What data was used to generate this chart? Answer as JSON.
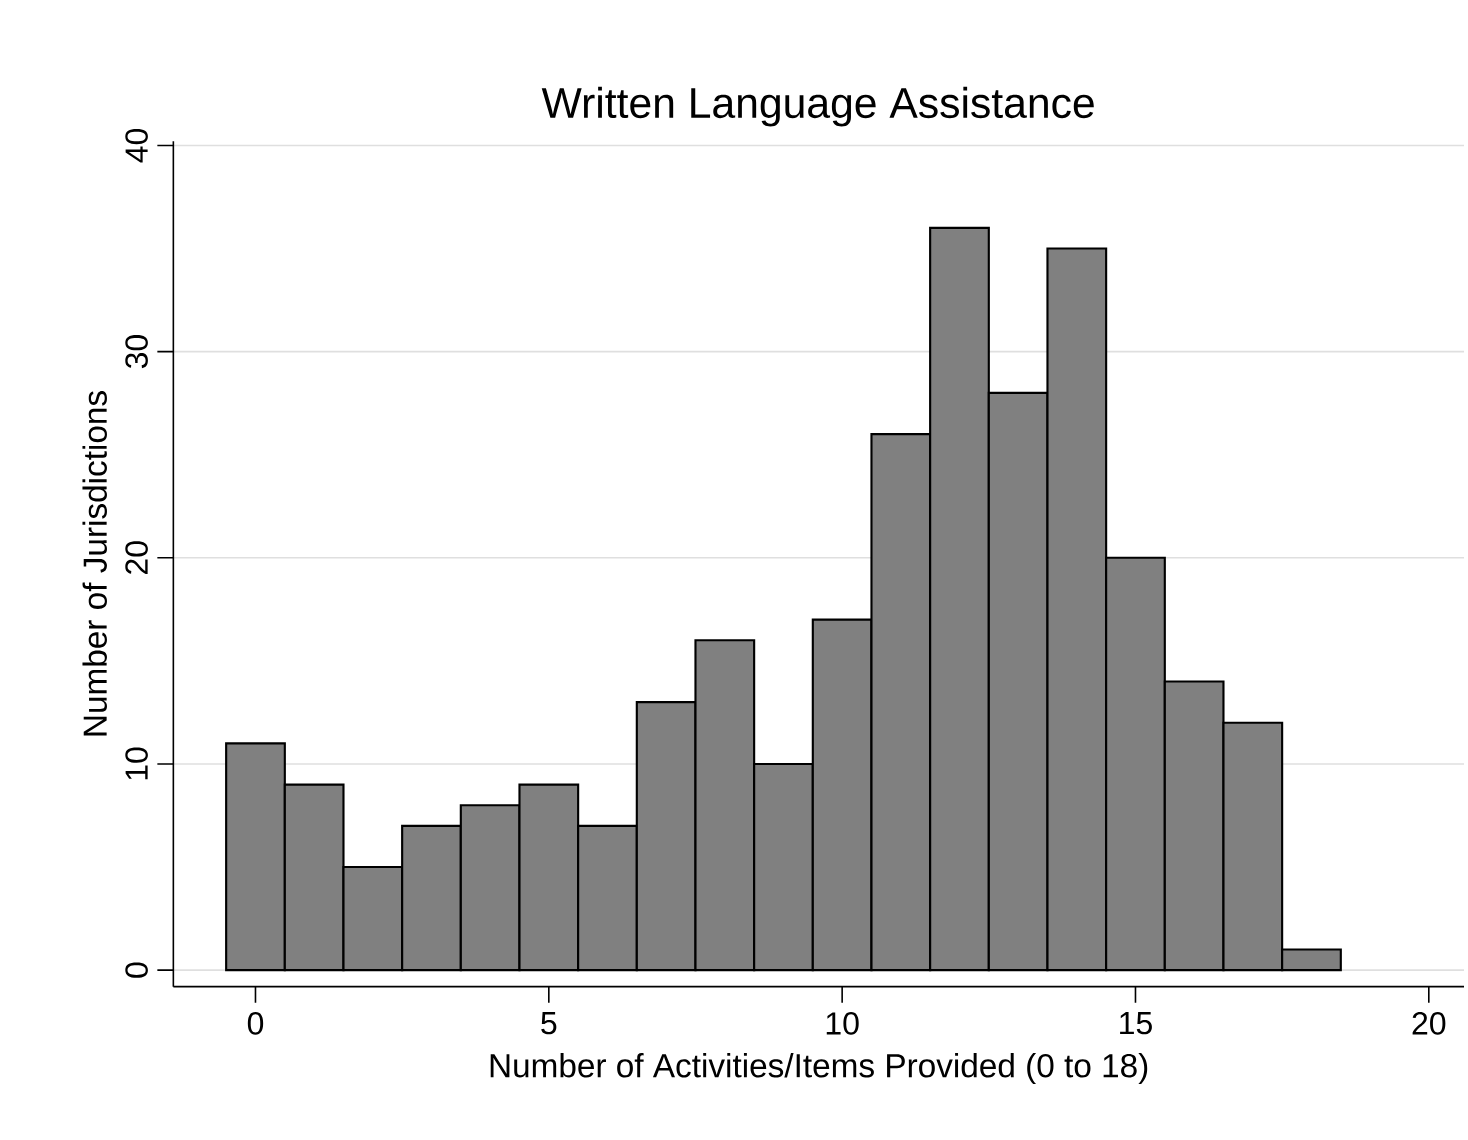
{
  "chart_data": {
    "type": "histogram",
    "title": "Written Language Assistance",
    "xlabel": "Number of Activities/Items Provided (0 to 18)",
    "ylabel": "Number of Jurisdictions",
    "bins": [
      -0.5,
      0.5,
      1.5,
      2.5,
      3.5,
      4.5,
      5.5,
      6.5,
      7.5,
      8.5,
      9.5,
      10.5,
      11.5,
      12.5,
      13.5,
      14.5,
      15.5,
      16.5,
      17.5,
      18.5
    ],
    "values": [
      11,
      9,
      5,
      7,
      8,
      9,
      7,
      13,
      16,
      10,
      17,
      26,
      36,
      28,
      35,
      20,
      14,
      12,
      1
    ],
    "color": "#808080",
    "xlim": [
      -1.4,
      20.6
    ],
    "ylim": [
      -0.8,
      40.2
    ],
    "xticks": [
      0,
      5,
      10,
      15,
      20
    ],
    "yticks": [
      0,
      10,
      20,
      30,
      40
    ],
    "grid": "y"
  }
}
